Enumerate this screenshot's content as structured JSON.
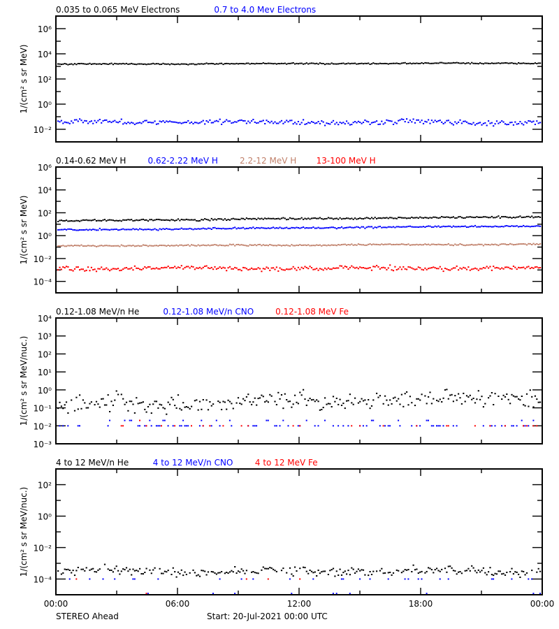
{
  "footer": {
    "spacecraft": "STEREO Ahead",
    "start": "Start: 20-Jul-2021 00:00 UTC"
  },
  "colors": {
    "black": "#000000",
    "blue": "#0000ff",
    "tan": "#c0806a",
    "red": "#ff0000"
  },
  "chart_data": [
    {
      "type": "scatter",
      "title": "",
      "xlabel": "",
      "ylabel": "1/(cm² s sr MeV)",
      "yscale": "log",
      "ylim_exp": [
        -3,
        7
      ],
      "yticks_labeled": [
        -2,
        0,
        2,
        4,
        6
      ],
      "minor_ticks": true,
      "x_range_hours": [
        0,
        24
      ],
      "xtick_labels": [
        "00:00",
        "06:00",
        "12:00",
        "18:00",
        "00:00"
      ],
      "legend_position": "top",
      "series": [
        {
          "name": "0.035 to 0.065 MeV Electrons",
          "color": "#000000",
          "log_base": 3.18,
          "log_noise": 0.03,
          "log_trend": 0.08,
          "approx_value": 1500
        },
        {
          "name": "0.7 to 4.0 Mev Electrons",
          "color": "#0000ff",
          "log_base": -1.4,
          "log_noise": 0.12,
          "log_trend": -0.05,
          "approx_value": 0.04
        }
      ]
    },
    {
      "type": "scatter",
      "ylabel": "1/(cm² s sr MeV)",
      "yscale": "log",
      "ylim_exp": [
        -5,
        6
      ],
      "yticks_labeled": [
        -4,
        -2,
        0,
        2,
        4,
        6
      ],
      "minor_ticks": true,
      "x_range_hours": [
        0,
        24
      ],
      "xtick_labels": [
        "00:00",
        "06:00",
        "12:00",
        "18:00",
        "00:00"
      ],
      "series": [
        {
          "name": "0.14-0.62 MeV H",
          "color": "#000000",
          "log_base": 1.3,
          "log_noise": 0.05,
          "log_trend": 0.35,
          "approx_value": 20
        },
        {
          "name": "0.62-2.22 MeV H",
          "color": "#0000ff",
          "log_base": 0.5,
          "log_noise": 0.04,
          "log_trend": 0.35,
          "approx_value": 3
        },
        {
          "name": "2.2-12 MeV H",
          "color": "#c0806a",
          "log_base": -0.9,
          "log_noise": 0.04,
          "log_trend": 0.15,
          "approx_value": 0.12
        },
        {
          "name": "13-100 MeV H",
          "color": "#ff0000",
          "log_base": -2.85,
          "log_noise": 0.12,
          "log_trend": 0.0,
          "approx_value": 0.0014
        }
      ]
    },
    {
      "type": "scatter",
      "ylabel": "1/(cm² s sr MeV/nuc.)",
      "yscale": "log",
      "ylim_exp": [
        -3,
        4
      ],
      "yticks_labeled": [
        -3,
        -2,
        -1,
        0,
        1,
        2,
        3,
        4
      ],
      "minor_ticks": false,
      "x_range_hours": [
        0,
        24
      ],
      "xtick_labels": [
        "00:00",
        "06:00",
        "12:00",
        "18:00",
        "00:00"
      ],
      "series": [
        {
          "name": "0.12-1.08 MeV/n He",
          "color": "#000000",
          "log_base": -0.85,
          "log_noise": 0.28,
          "log_trend": 0.45,
          "approx_value": 0.15,
          "sparse": 0.95
        },
        {
          "name": "0.12-1.08 MeV/n CNO",
          "color": "#0000ff",
          "floor_exp": -2.0,
          "second_exp": -1.7,
          "sparse": 0.3,
          "approx_value": 0.01
        },
        {
          "name": "0.12-1.08 MeV Fe",
          "color": "#ff0000",
          "floor_exp": -2.0,
          "second_exp": -1.7,
          "sparse": 0.08,
          "approx_value": 0.01
        }
      ]
    },
    {
      "type": "scatter",
      "ylabel": "1/(cm² s sr MeV/nuc.)",
      "yscale": "log",
      "ylim_exp": [
        -5,
        3
      ],
      "yticks_labeled": [
        -4,
        -2,
        0,
        2
      ],
      "minor_ticks": true,
      "x_range_hours": [
        0,
        24
      ],
      "xtick_labels": [
        "00:00",
        "06:00",
        "12:00",
        "18:00",
        "00:00"
      ],
      "series": [
        {
          "name": "4 to 12 MeV/n He",
          "color": "#000000",
          "log_base": -3.5,
          "log_noise": 0.17,
          "log_trend": 0.0,
          "approx_value": 0.0003,
          "sparse": 0.9
        },
        {
          "name": "4 to 12 MeV/n CNO",
          "color": "#0000ff",
          "floor_exp": -4.0,
          "second_exp": -4.92,
          "sparse": 0.12,
          "approx_value": 0.0001
        },
        {
          "name": "4 to 12 MeV Fe",
          "color": "#ff0000",
          "floor_exp": -4.0,
          "second_exp": -4.92,
          "sparse": 0.015,
          "approx_value": 0.0001
        }
      ]
    }
  ]
}
